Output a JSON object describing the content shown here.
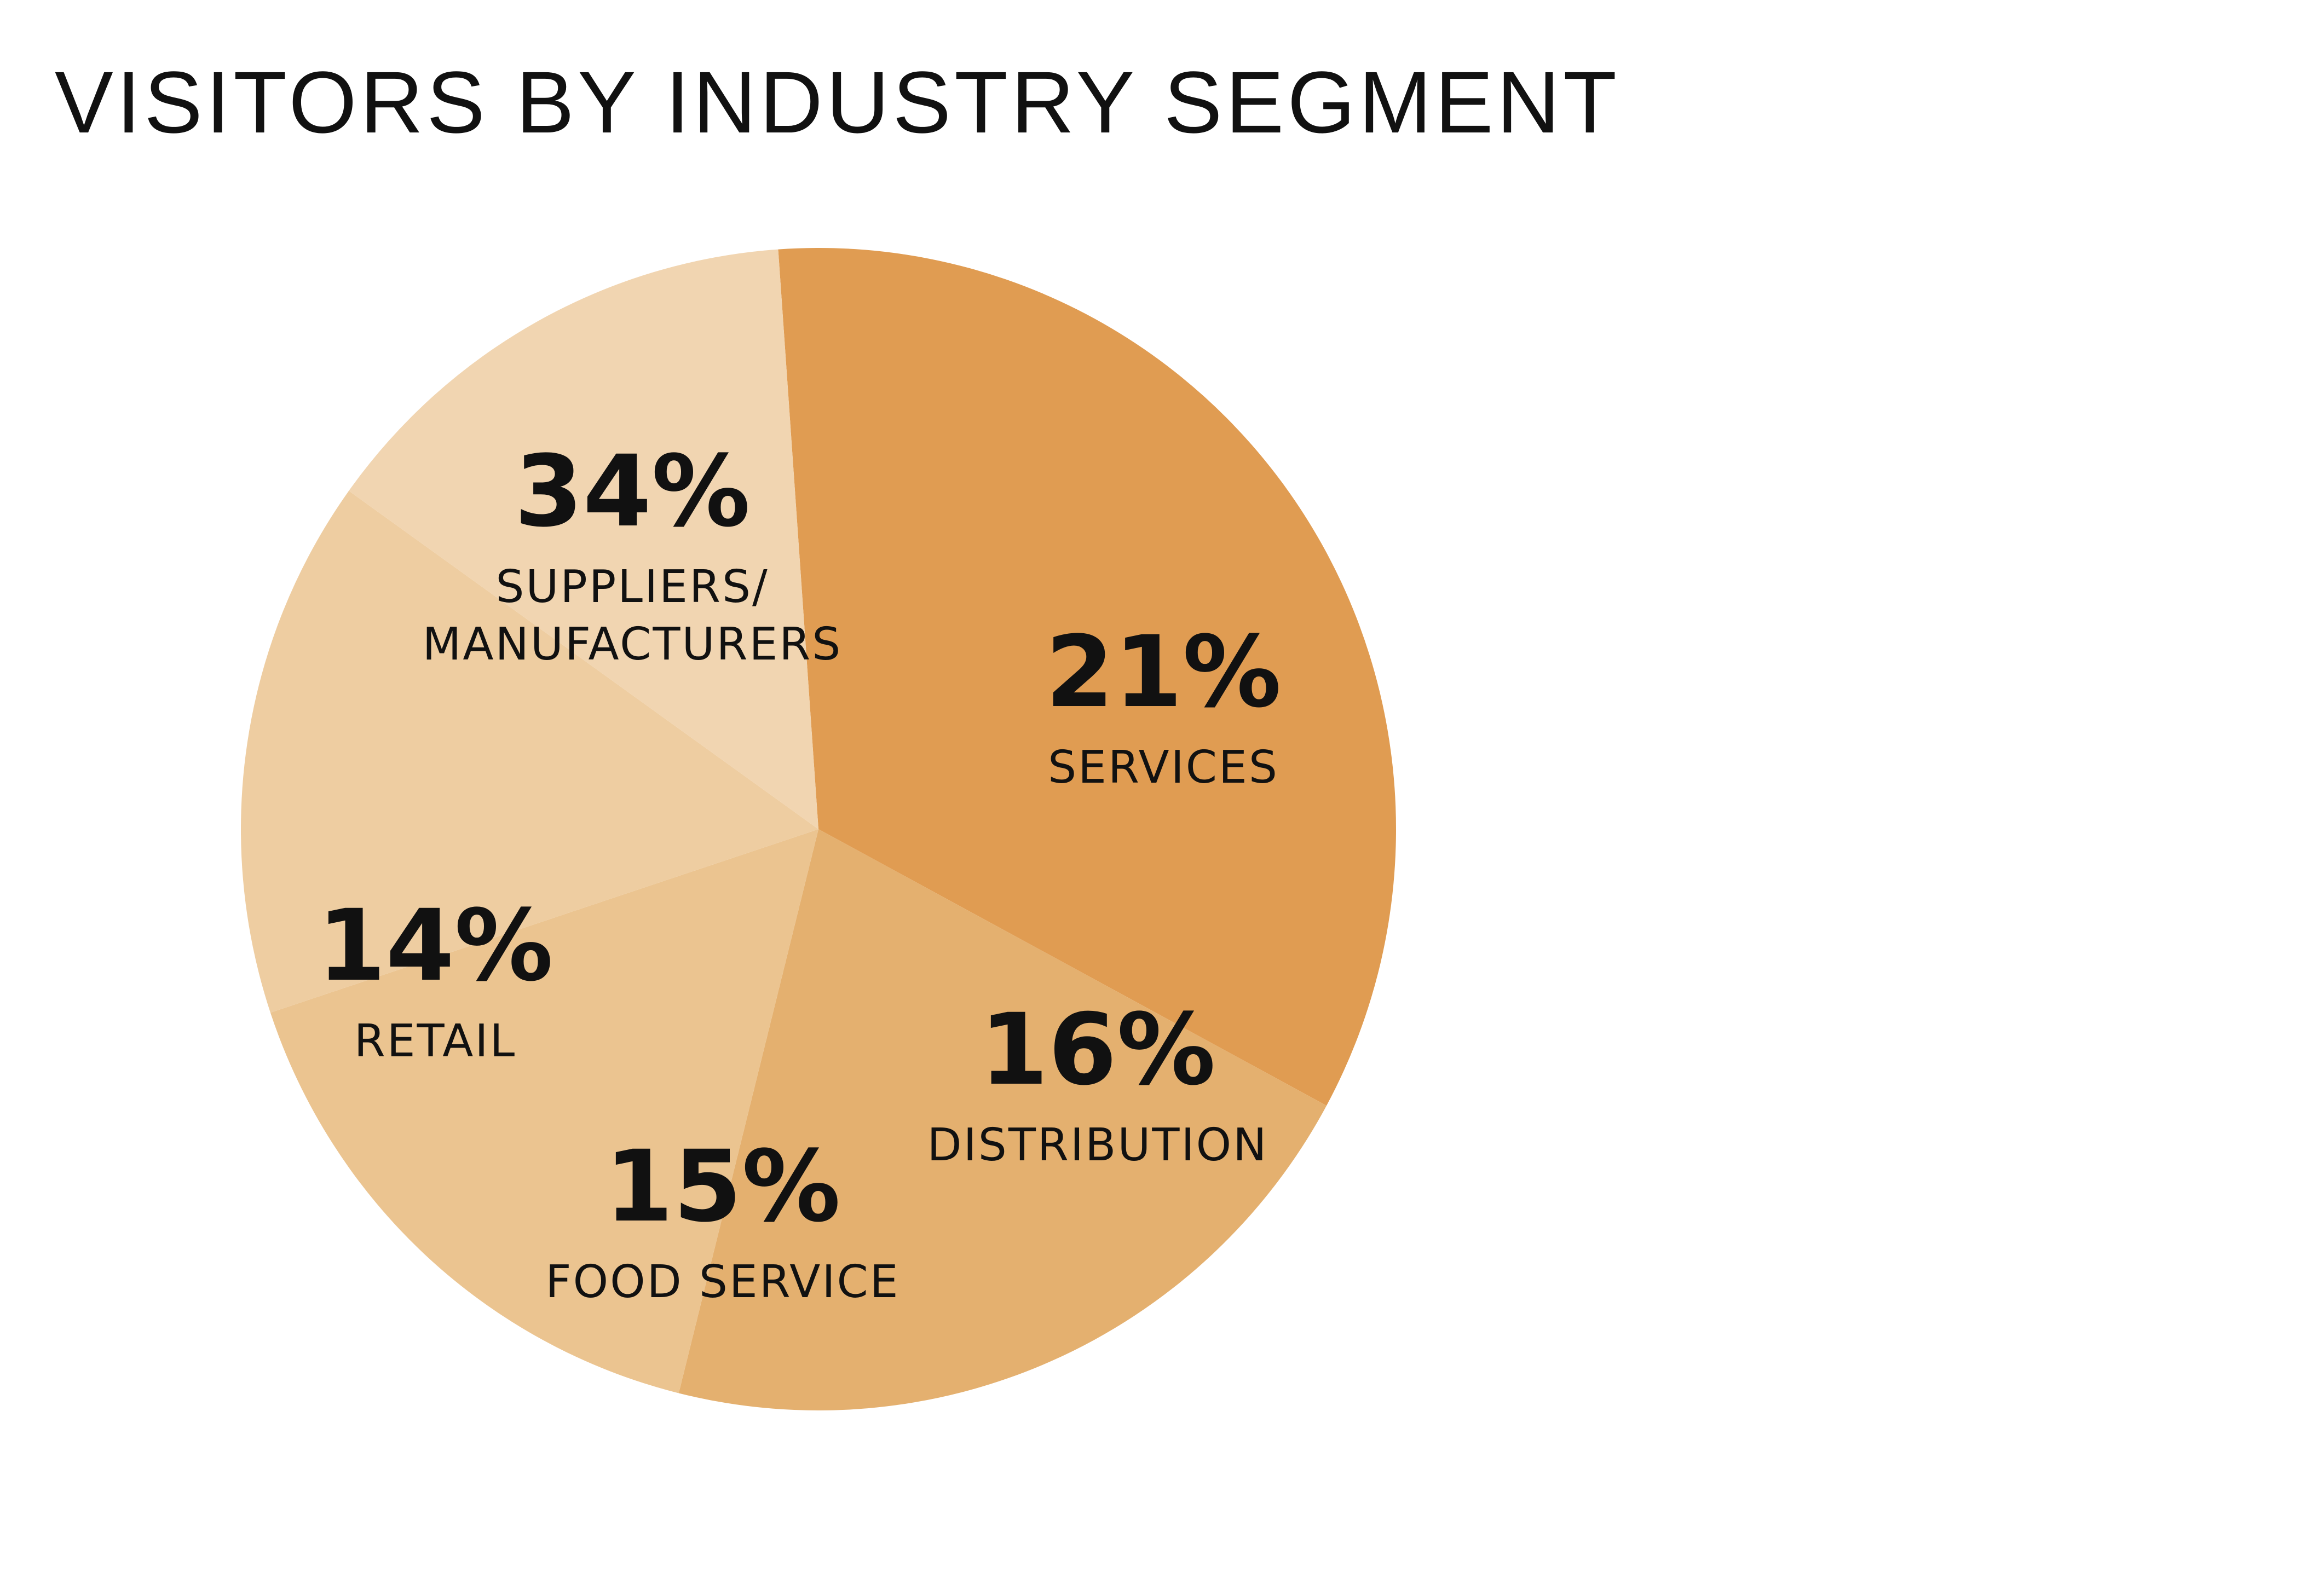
{
  "chart_data": {
    "type": "pie",
    "title": "VISITORS BY INDUSTRY SEGMENT",
    "legend": "none",
    "slices": [
      {
        "label_lines": [
          "SUPPLIERS/",
          "MANUFACTURERS"
        ],
        "value": 34,
        "value_label": "34%",
        "color": "#E09C52"
      },
      {
        "label_lines": [
          "SERVICES"
        ],
        "value": 21,
        "value_label": "21%",
        "color": "#E4B06F"
      },
      {
        "label_lines": [
          "DISTRIBUTION"
        ],
        "value": 16,
        "value_label": "16%",
        "color": "#EBC490"
      },
      {
        "label_lines": [
          "FOOD SERVICE"
        ],
        "value": 15,
        "value_label": "15%",
        "color": "#EECDA1"
      },
      {
        "label_lines": [
          "RETAIL"
        ],
        "value": 14,
        "value_label": "14%",
        "color": "#F1D5B1"
      }
    ]
  }
}
